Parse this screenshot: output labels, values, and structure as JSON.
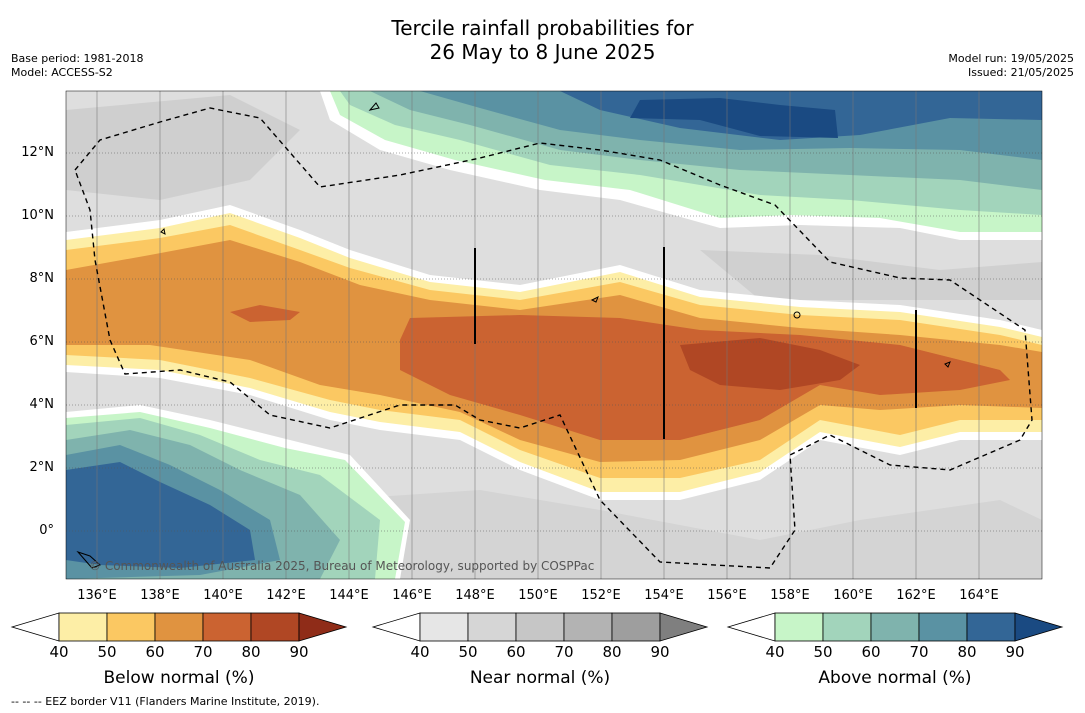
{
  "title": {
    "line1": "Tercile rainfall probabilities for",
    "line2": "26 May to 8 June 2025"
  },
  "meta_left": {
    "base_period": "Base period: 1981-2018",
    "model": "Model: ACCESS-S2"
  },
  "meta_right": {
    "model_run": "Model run: 19/05/2025",
    "issued": "Issued: 21/05/2025"
  },
  "map": {
    "lat_labels": [
      "12°N",
      "10°N",
      "8°N",
      "6°N",
      "4°N",
      "2°N",
      "0°"
    ],
    "lon_labels": [
      "136°E",
      "138°E",
      "140°E",
      "142°E",
      "144°E",
      "146°E",
      "148°E",
      "150°E",
      "152°E",
      "154°E",
      "156°E",
      "158°E",
      "160°E",
      "162°E",
      "164°E"
    ],
    "credit": "© Commonwealth of Australia 2025, Bureau of Meteorology, supported by COSPPac"
  },
  "colorbars": [
    {
      "name": "below",
      "title": "Below normal (%)",
      "ticks": [
        "40",
        "50",
        "60",
        "70",
        "80",
        "90"
      ],
      "colors": [
        "#ffffff",
        "#fdeea6",
        "#fbc862",
        "#e09340",
        "#cb6331",
        "#b04724",
        "#8f2c18"
      ]
    },
    {
      "name": "near",
      "title": "Near normal (%)",
      "ticks": [
        "40",
        "50",
        "60",
        "70",
        "80",
        "90"
      ],
      "colors": [
        "#ffffff",
        "#e6e6e6",
        "#d6d6d6",
        "#c6c6c6",
        "#b3b3b3",
        "#9e9e9e",
        "#7f7f7f"
      ]
    },
    {
      "name": "above",
      "title": "Above normal (%)",
      "ticks": [
        "40",
        "50",
        "60",
        "70",
        "80",
        "90"
      ],
      "colors": [
        "#ffffff",
        "#c7f5c8",
        "#a2d4bb",
        "#7fb3ad",
        "#5a92a3",
        "#336696",
        "#1a4a82"
      ]
    }
  ],
  "footnote": "--  --  -- EEZ border V11 (Flanders Marine Institute, 2019)."
}
